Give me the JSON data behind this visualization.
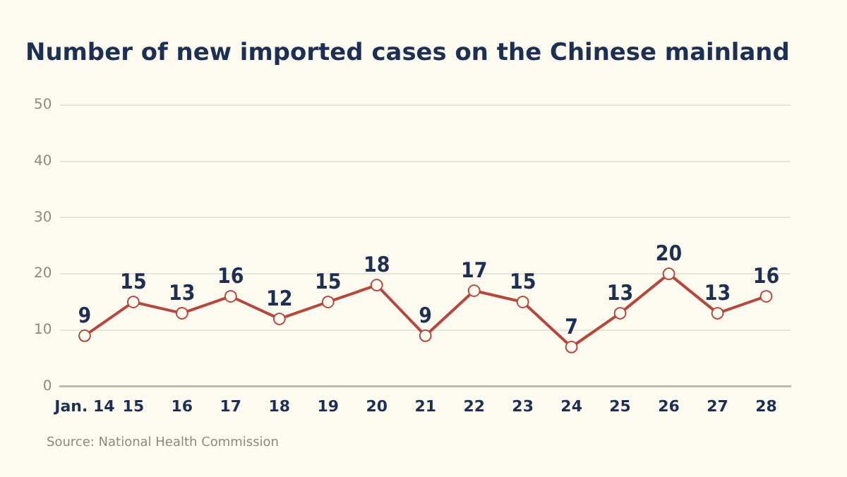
{
  "chart_data": {
    "type": "line",
    "title": "Number of new imported cases on the Chinese mainland",
    "categories": [
      "Jan. 14",
      "15",
      "16",
      "17",
      "18",
      "19",
      "20",
      "21",
      "22",
      "23",
      "24",
      "25",
      "26",
      "27",
      "28"
    ],
    "values": [
      9,
      15,
      13,
      16,
      12,
      15,
      18,
      9,
      17,
      15,
      7,
      13,
      20,
      13,
      16
    ],
    "color": "#b5473d",
    "marker": "circle",
    "data_labels": true,
    "ylim": [
      0,
      50
    ],
    "yticks": [
      0,
      10,
      20,
      30,
      40,
      50
    ],
    "grid": "y",
    "legend": false,
    "annotations": [
      "Source: National Health Commission"
    ]
  }
}
